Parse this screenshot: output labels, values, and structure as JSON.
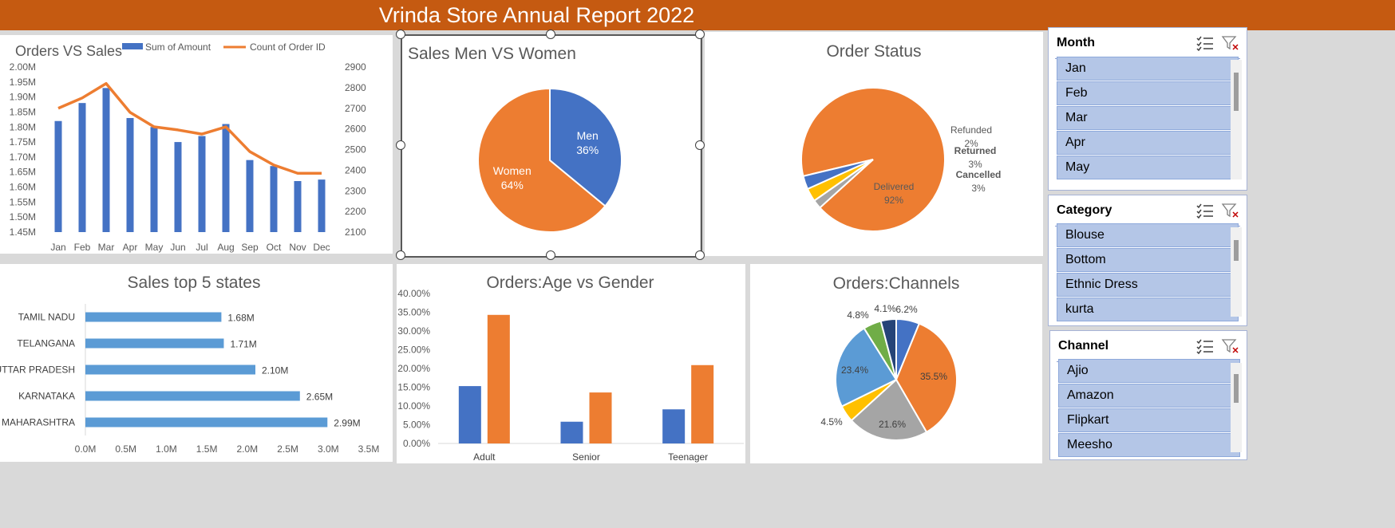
{
  "report_title": "Vrinda Store Annual Report 2022",
  "icons": {
    "add": "plus-icon",
    "style": "paintbrush-icon",
    "multi_select": "multi-select-icon",
    "clear_filter": "clear-filter-icon"
  },
  "chart_data": [
    {
      "id": "orders_vs_sales",
      "type": "bar+line",
      "title": "Orders VS Sales",
      "categories": [
        "Jan",
        "Feb",
        "Mar",
        "Apr",
        "May",
        "Jun",
        "Jul",
        "Aug",
        "Sep",
        "Oct",
        "Nov",
        "Dec"
      ],
      "series": [
        {
          "name": "Sum of Amount",
          "type": "bar",
          "axis": "left",
          "color": "#4472c4",
          "values": [
            1.82,
            1.88,
            1.93,
            1.83,
            1.8,
            1.75,
            1.77,
            1.81,
            1.69,
            1.67,
            1.62,
            1.625
          ]
        },
        {
          "name": "Count of Order ID",
          "type": "line",
          "axis": "right",
          "color": "#ed7d31",
          "values": [
            2700,
            2750,
            2820,
            2680,
            2610,
            2595,
            2575,
            2610,
            2490,
            2425,
            2385,
            2385
          ]
        }
      ],
      "y_left": {
        "min": 1.45,
        "max": 2.0,
        "step": 0.05,
        "tick_labels": [
          "2.00M",
          "1.95M",
          "1.90M",
          "1.85M",
          "1.80M",
          "1.75M",
          "1.70M",
          "1.65M",
          "1.60M",
          "1.55M",
          "1.50M",
          "1.45M"
        ]
      },
      "y_right": {
        "min": 2100,
        "max": 2900,
        "step": 100,
        "tick_labels": [
          "2900",
          "2800",
          "2700",
          "2600",
          "2500",
          "2400",
          "2300",
          "2200",
          "2100"
        ]
      },
      "legend": "top"
    },
    {
      "id": "sales_men_women",
      "type": "pie",
      "title": "Sales Men VS Women",
      "slices": [
        {
          "label": "Men",
          "value": 36,
          "display": "36%",
          "color": "#4472c4"
        },
        {
          "label": "Women",
          "value": 64,
          "display": "64%",
          "color": "#ed7d31"
        }
      ]
    },
    {
      "id": "order_status",
      "type": "pie",
      "title": "Order Status",
      "slices": [
        {
          "label": "Delivered",
          "value": 92,
          "display": "92%",
          "color": "#ed7d31"
        },
        {
          "label": "Refunded",
          "value": 2,
          "display": "2%",
          "color": "#a5a5a5"
        },
        {
          "label": "Returned",
          "value": 3,
          "display": "3%",
          "color": "#ffc000"
        },
        {
          "label": "Cancelled",
          "value": 3,
          "display": "3%",
          "color": "#4472c4"
        }
      ]
    },
    {
      "id": "sales_top_states",
      "type": "bar",
      "orientation": "horizontal",
      "title": "Sales top 5 states",
      "categories": [
        "TAMIL NADU",
        "TELANGANA",
        "UTTAR PRADESH",
        "KARNATAKA",
        "MAHARASHTRA"
      ],
      "values": [
        1.68,
        1.71,
        2.1,
        2.65,
        2.99
      ],
      "value_labels": [
        "1.68M",
        "1.71M",
        "2.10M",
        "2.65M",
        "2.99M"
      ],
      "x_axis": {
        "min": 0,
        "max": 3.5,
        "tick_labels": [
          "0.0M",
          "0.5M",
          "1.0M",
          "1.5M",
          "2.0M",
          "2.5M",
          "3.0M",
          "3.5M"
        ]
      },
      "color": "#5b9bd5"
    },
    {
      "id": "orders_age_gender",
      "type": "bar",
      "title": "Orders:Age vs Gender",
      "categories": [
        "Adult",
        "Senior",
        "Teenager"
      ],
      "series": [
        {
          "values": [
            15.3,
            5.8,
            9.1
          ],
          "color": "#4472c4"
        },
        {
          "values": [
            34.3,
            13.6,
            20.9
          ],
          "color": "#ed7d31"
        }
      ],
      "y_axis": {
        "min": 0,
        "max": 40,
        "tick_labels": [
          "40.00%",
          "35.00%",
          "30.00%",
          "25.00%",
          "20.00%",
          "15.00%",
          "10.00%",
          "5.00%",
          "0.00%"
        ]
      }
    },
    {
      "id": "orders_channels",
      "type": "pie",
      "title": "Orders:Channels",
      "slices": [
        {
          "value": 6.2,
          "display": "6.2%",
          "color": "#4472c4"
        },
        {
          "value": 35.5,
          "display": "35.5%",
          "color": "#ed7d31"
        },
        {
          "value": 21.6,
          "display": "21.6%",
          "color": "#a5a5a5"
        },
        {
          "value": 4.5,
          "display": "4.5%",
          "color": "#ffc000"
        },
        {
          "value": 23.4,
          "display": "23.4%",
          "color": "#5b9bd5"
        },
        {
          "value": 4.8,
          "display": "4.8%",
          "color": "#70ad47"
        },
        {
          "value": 4.1,
          "display": "4.1%",
          "color": "#264478"
        }
      ]
    }
  ],
  "slicers": {
    "month": {
      "title": "Month",
      "items": [
        "Jan",
        "Feb",
        "Mar",
        "Apr",
        "May"
      ]
    },
    "category": {
      "title": "Category",
      "items": [
        "Blouse",
        "Bottom",
        "Ethnic Dress",
        "kurta"
      ]
    },
    "channel": {
      "title": "Channel",
      "items": [
        "Ajio",
        "Amazon",
        "Flipkart",
        "Meesho"
      ]
    }
  }
}
